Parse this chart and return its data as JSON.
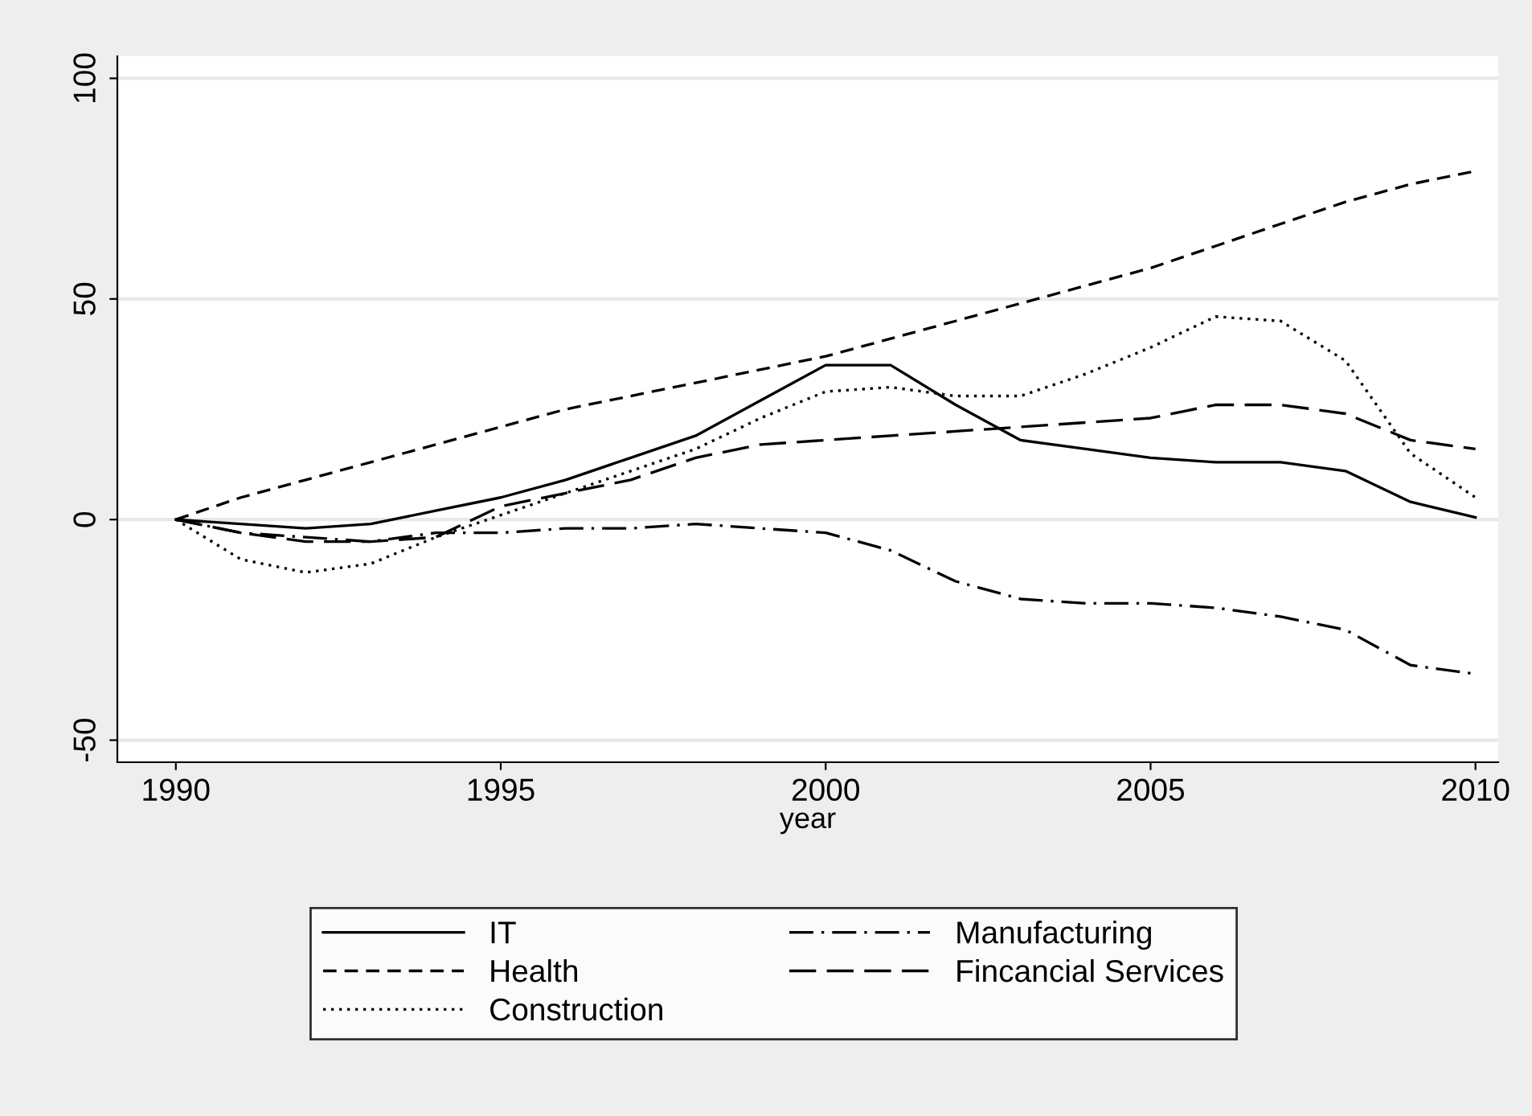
{
  "chart_data": {
    "type": "line",
    "xlabel": "year",
    "x": [
      1990,
      1991,
      1992,
      1993,
      1994,
      1995,
      1996,
      1997,
      1998,
      1999,
      2000,
      2001,
      2002,
      2003,
      2004,
      2005,
      2006,
      2007,
      2008,
      2009,
      2010
    ],
    "series": [
      {
        "name": "IT",
        "color": "#000000",
        "line_style": "solid",
        "values": [
          0,
          -1,
          -2,
          -1,
          2,
          5,
          9,
          14,
          19,
          27,
          35,
          35,
          26,
          18,
          16,
          14,
          13,
          13,
          11,
          4,
          0.5
        ]
      },
      {
        "name": "Health",
        "color": "#000000",
        "line_style": "dashed",
        "values": [
          0,
          5,
          9,
          13,
          17,
          21,
          25,
          28,
          31,
          34,
          37,
          41,
          45,
          49,
          53,
          57,
          62,
          67,
          72,
          76,
          79
        ]
      },
      {
        "name": "Construction",
        "color": "#000000",
        "line_style": "dotted",
        "values": [
          0,
          -9,
          -12,
          -10,
          -4,
          1,
          6,
          11,
          16,
          23,
          29,
          30,
          28,
          28,
          33,
          39,
          46,
          45,
          36,
          15,
          5
        ]
      },
      {
        "name": "Manufacturing",
        "color": "#000000",
        "line_style": "dashdot",
        "values": [
          0,
          -3,
          -4,
          -5,
          -3,
          -3,
          -2,
          -2,
          -1,
          -2,
          -3,
          -7,
          -14,
          -18,
          -19,
          -19,
          -20,
          -22,
          -25,
          -33,
          -35
        ]
      },
      {
        "name": "Fincancial Services",
        "color": "#000000",
        "line_style": "longdash",
        "values": [
          0,
          -3,
          -5,
          -5,
          -4,
          3,
          6,
          9,
          14,
          17,
          18,
          19,
          20,
          21,
          22,
          23,
          26,
          26,
          24,
          18,
          16
        ]
      }
    ],
    "xlim": [
      1989.1,
      2010.35
    ],
    "ylim": [
      -55,
      105
    ],
    "xticks": [
      1990,
      1995,
      2000,
      2005,
      2010
    ],
    "yticks": [
      -50,
      0,
      50,
      100
    ],
    "grid": "y",
    "legend": "bottom"
  }
}
